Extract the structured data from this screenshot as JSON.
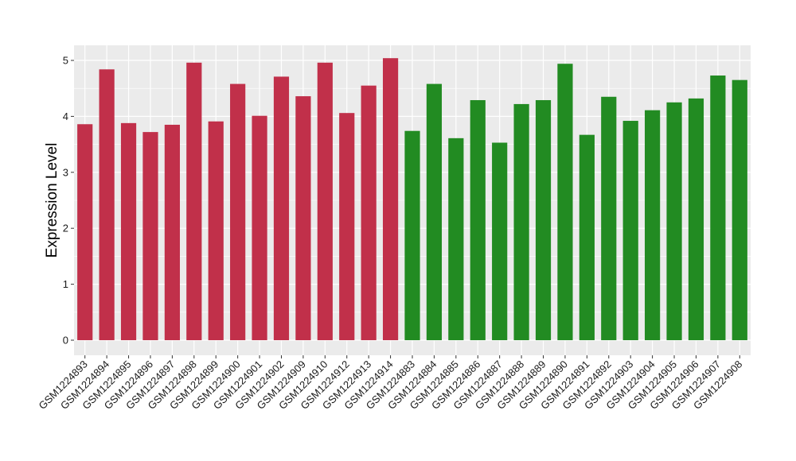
{
  "chart_data": {
    "type": "bar",
    "title": "",
    "xlabel": "",
    "ylabel": "Expression Level",
    "ylim": [
      -0.27,
      5.27
    ],
    "yticks": [
      0,
      1,
      2,
      3,
      4,
      5
    ],
    "grid": true,
    "legend": "none",
    "panel_background": "#ebebeb",
    "grid_color": "#ffffff",
    "categories": [
      "GSM1224893",
      "GSM1224894",
      "GSM1224895",
      "GSM1224896",
      "GSM1224897",
      "GSM1224898",
      "GSM1224899",
      "GSM1224900",
      "GSM1224901",
      "GSM1224902",
      "GSM1224909",
      "GSM1224910",
      "GSM1224912",
      "GSM1224913",
      "GSM1224914",
      "GSM1224883",
      "GSM1224884",
      "GSM1224885",
      "GSM1224886",
      "GSM1224887",
      "GSM1224888",
      "GSM1224889",
      "GSM1224890",
      "GSM1224891",
      "GSM1224892",
      "GSM1224903",
      "GSM1224904",
      "GSM1224905",
      "GSM1224906",
      "GSM1224907",
      "GSM1224908"
    ],
    "values": [
      3.86,
      4.84,
      3.88,
      3.72,
      3.85,
      4.96,
      3.91,
      4.58,
      4.01,
      4.71,
      4.36,
      4.96,
      4.06,
      4.55,
      5.04,
      3.74,
      4.58,
      3.61,
      4.29,
      3.53,
      4.22,
      4.29,
      4.94,
      3.67,
      4.35,
      3.92,
      4.11,
      4.25,
      4.32,
      4.73,
      4.65
    ],
    "colors": [
      "#c1304a",
      "#c1304a",
      "#c1304a",
      "#c1304a",
      "#c1304a",
      "#c1304a",
      "#c1304a",
      "#c1304a",
      "#c1304a",
      "#c1304a",
      "#c1304a",
      "#c1304a",
      "#c1304a",
      "#c1304a",
      "#c1304a",
      "#228b22",
      "#228b22",
      "#228b22",
      "#228b22",
      "#228b22",
      "#228b22",
      "#228b22",
      "#228b22",
      "#228b22",
      "#228b22",
      "#228b22",
      "#228b22",
      "#228b22",
      "#228b22",
      "#228b22",
      "#228b22"
    ]
  }
}
